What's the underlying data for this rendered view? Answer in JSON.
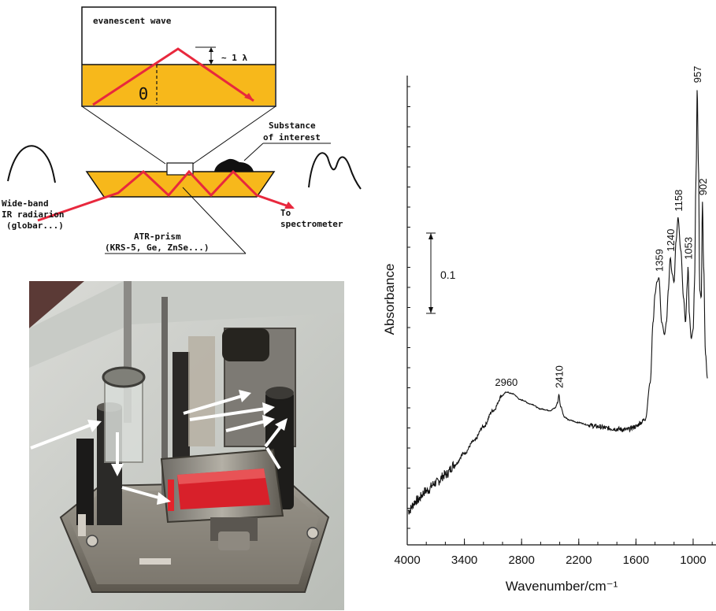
{
  "diagram": {
    "evanescent_label": "evanescent wave",
    "depth_label": "~ 1 λ",
    "angle_label": "Θ",
    "substance_line1": "Substance",
    "substance_line2": "of interest",
    "source_line1": "Wide-band",
    "source_line2": "IR radiarion",
    "source_line3": "(globar...)",
    "prism_line1": "ATR-prism",
    "prism_line2": "(KRS-5, Ge, ZnSe...)",
    "out_line1": "To",
    "out_line2": "spectrometer",
    "colors": {
      "crystal": "#f7b81b",
      "beam": "#e8283d",
      "outline": "#111111"
    }
  },
  "photo": {
    "description_icon": "atr-accessory-photo",
    "colors": {
      "background": "#cfd2cd",
      "metal": "#8d8d86",
      "crystal": "#d8202a",
      "arrow": "#ffffff"
    }
  },
  "spectrum": {
    "ylabel": "Absorbance",
    "xlabel": "Wavenumber/cm⁻¹",
    "scale_label": "0.1",
    "peak_labels": [
      "2960",
      "2410",
      "1359",
      "1240",
      "1158",
      "1053",
      "957",
      "902"
    ],
    "x_ticks": [
      "4000",
      "3400",
      "2800",
      "2200",
      "1600",
      "1000"
    ]
  },
  "chart_data": {
    "type": "line",
    "title": "",
    "xlabel": "Wavenumber/cm⁻¹",
    "ylabel": "Absorbance",
    "x_reversed": true,
    "xlim": [
      4000,
      760
    ],
    "scale_bar": 0.1,
    "x": [
      3990,
      3900,
      3800,
      3700,
      3600,
      3500,
      3400,
      3300,
      3200,
      3100,
      3000,
      2960,
      2900,
      2800,
      2700,
      2600,
      2500,
      2450,
      2420,
      2410,
      2390,
      2350,
      2300,
      2200,
      2100,
      2000,
      1900,
      1800,
      1700,
      1600,
      1550,
      1500,
      1450,
      1420,
      1400,
      1380,
      1359,
      1330,
      1300,
      1280,
      1260,
      1240,
      1220,
      1200,
      1180,
      1158,
      1130,
      1100,
      1080,
      1060,
      1053,
      1040,
      1020,
      1000,
      985,
      970,
      957,
      945,
      930,
      915,
      902,
      890,
      870,
      850
    ],
    "y": [
      0.005,
      0.018,
      0.03,
      0.04,
      0.05,
      0.063,
      0.077,
      0.092,
      0.11,
      0.13,
      0.149,
      0.153,
      0.151,
      0.143,
      0.138,
      0.132,
      0.13,
      0.133,
      0.14,
      0.15,
      0.135,
      0.122,
      0.118,
      0.115,
      0.112,
      0.11,
      0.108,
      0.107,
      0.106,
      0.11,
      0.115,
      0.12,
      0.165,
      0.24,
      0.275,
      0.29,
      0.295,
      0.24,
      0.225,
      0.24,
      0.28,
      0.32,
      0.3,
      0.29,
      0.34,
      0.37,
      0.33,
      0.27,
      0.24,
      0.29,
      0.31,
      0.25,
      0.22,
      0.23,
      0.29,
      0.42,
      0.53,
      0.44,
      0.28,
      0.27,
      0.39,
      0.31,
      0.2,
      0.17
    ],
    "peaks": [
      {
        "x": 2960,
        "label": "2960"
      },
      {
        "x": 2410,
        "label": "2410"
      },
      {
        "x": 1359,
        "label": "1359"
      },
      {
        "x": 1240,
        "label": "1240"
      },
      {
        "x": 1158,
        "label": "1158"
      },
      {
        "x": 1053,
        "label": "1053"
      },
      {
        "x": 957,
        "label": "957"
      },
      {
        "x": 902,
        "label": "902"
      }
    ]
  }
}
